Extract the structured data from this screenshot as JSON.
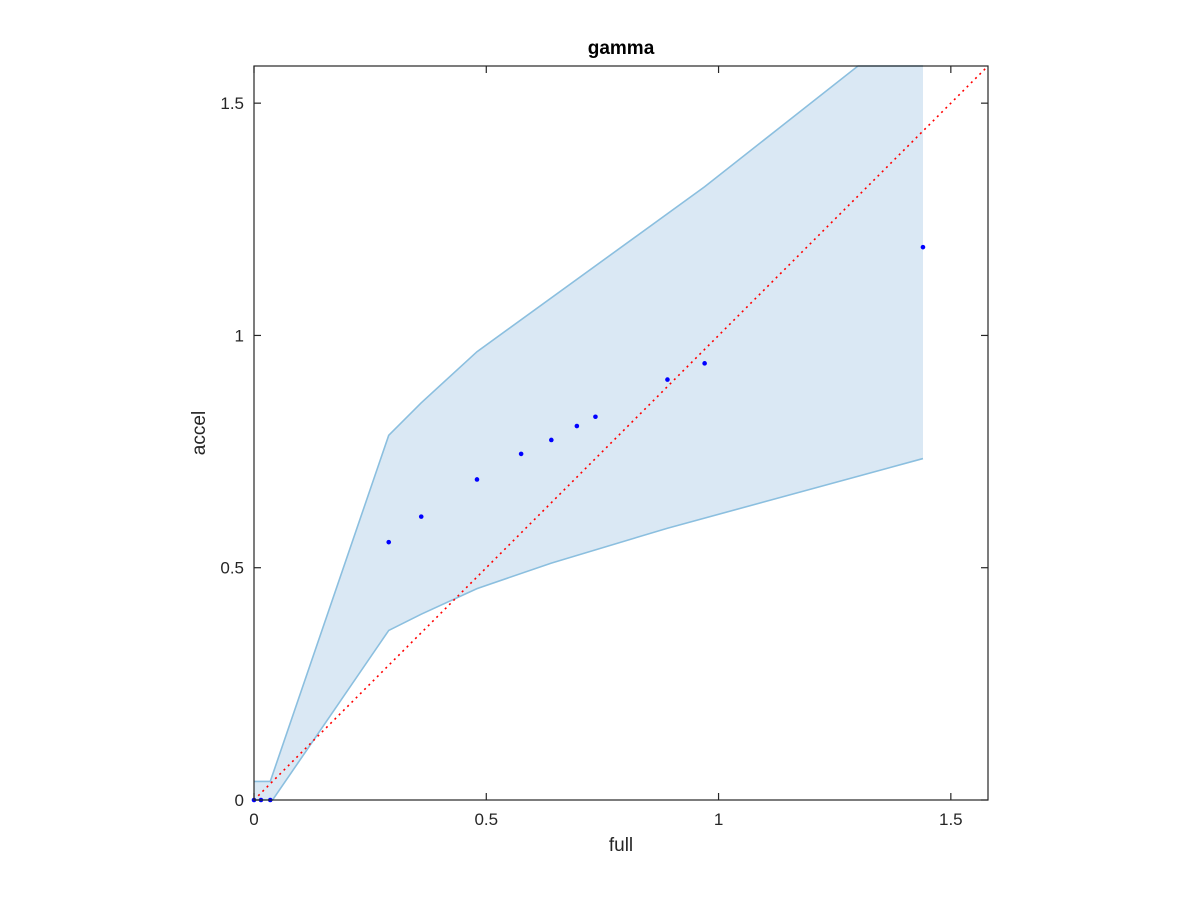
{
  "chart_data": {
    "type": "scatter",
    "title": "gamma",
    "xlabel": "full",
    "ylabel": "accel",
    "xlim": [
      0,
      1.58
    ],
    "ylim": [
      0,
      1.58
    ],
    "x_ticks": [
      "0",
      "0.5",
      "1",
      "1.5"
    ],
    "y_ticks": [
      "0",
      "0.5",
      "1",
      "1.5"
    ],
    "x_tick_values": [
      0,
      0.5,
      1,
      1.5
    ],
    "y_tick_values": [
      0,
      0.5,
      1,
      1.5
    ],
    "grid": false,
    "band": {
      "upper": [
        [
          0,
          0.04
        ],
        [
          0.035,
          0.04
        ],
        [
          0.29,
          0.785
        ],
        [
          0.36,
          0.855
        ],
        [
          0.48,
          0.965
        ],
        [
          0.97,
          1.32
        ],
        [
          1.3,
          1.58
        ],
        [
          1.44,
          1.58
        ]
      ],
      "lower": [
        [
          0,
          0
        ],
        [
          0.04,
          0
        ],
        [
          0.29,
          0.365
        ],
        [
          0.36,
          0.4
        ],
        [
          0.48,
          0.455
        ],
        [
          0.64,
          0.51
        ],
        [
          0.89,
          0.585
        ],
        [
          1.44,
          0.735
        ]
      ],
      "color": "#9ecae1",
      "fill": "#dae8f4",
      "edge": "#8bbfdf"
    },
    "points": {
      "x": [
        0.0,
        0.015,
        0.035,
        0.29,
        0.36,
        0.48,
        0.575,
        0.64,
        0.695,
        0.735,
        0.89,
        0.97,
        1.44
      ],
      "y": [
        0.0,
        0.0,
        0.0,
        0.555,
        0.61,
        0.69,
        0.745,
        0.775,
        0.805,
        0.825,
        0.905,
        0.94,
        1.19
      ],
      "color": "#0000ff"
    },
    "reference_line": {
      "from": [
        0,
        0
      ],
      "to": [
        1.58,
        1.58
      ],
      "color": "#ff0000",
      "style": "dotted"
    }
  }
}
